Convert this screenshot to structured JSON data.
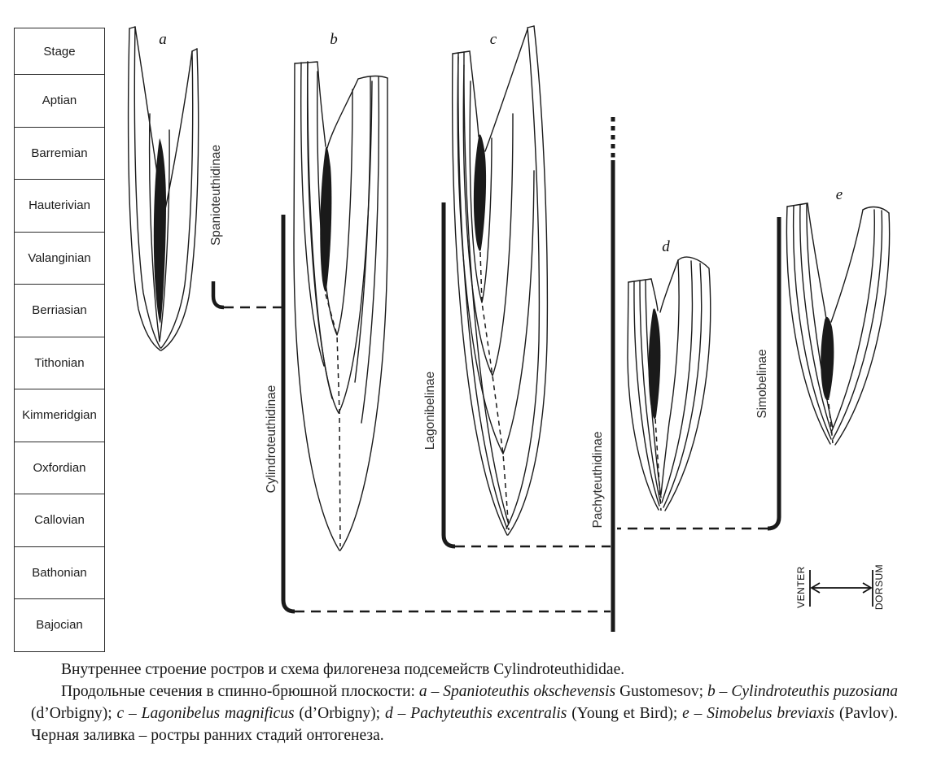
{
  "stage_column": {
    "header": "Stage",
    "stages": [
      "Aptian",
      "Barremian",
      "Hauterivian",
      "Valanginian",
      "Berriasian",
      "Tithonian",
      "Kimmeridgian",
      "Oxfordian",
      "Callovian",
      "Bathonian",
      "Bajocian"
    ]
  },
  "diagram": {
    "specimens": [
      {
        "letter": "a"
      },
      {
        "letter": "b"
      },
      {
        "letter": "c"
      },
      {
        "letter": "d"
      },
      {
        "letter": "e"
      }
    ],
    "subfamily_labels": {
      "spanioteuthidinae": "Spanioteuthidinae",
      "cylindroteuthidinae": "Cylindroteuthidinae",
      "lagonibelinae": "Lagonibelinae",
      "pachyteuthidinae": "Pachyteuthidinae",
      "simobelinae": "Simobelinae"
    },
    "orientation_axis": {
      "left_label": "VENTER",
      "right_label": "DORSUM"
    }
  },
  "colors": {
    "ink": "#1a1a1a",
    "early_ontogeny_fill": "#111111",
    "background": "#ffffff"
  },
  "caption": {
    "line1": "Внутреннее строение ростров и схема филогенеза подсемейств Cylindroteuthididae.",
    "line2_runs": [
      {
        "text": "Продольные сечения в спинно-брюшной плоскости: ",
        "italic": false
      },
      {
        "text": "a",
        "italic": true
      },
      {
        "text": " – ",
        "italic": false
      },
      {
        "text": "Spanioteuthis okschevensis",
        "italic": true
      },
      {
        "text": " Gustomesov; ",
        "italic": false
      },
      {
        "text": "b",
        "italic": true
      },
      {
        "text": " – ",
        "italic": false
      },
      {
        "text": "Cylindroteuthis puzosiana",
        "italic": true
      },
      {
        "text": " (d’Orbigny); ",
        "italic": false
      },
      {
        "text": "c",
        "italic": true
      },
      {
        "text": " – ",
        "italic": false
      },
      {
        "text": "Lagonibelus magnificus",
        "italic": true
      },
      {
        "text": " (d’Orbigny); ",
        "italic": false
      },
      {
        "text": "d",
        "italic": true
      },
      {
        "text": " – ",
        "italic": false
      },
      {
        "text": "Pachyteuthis excentralis",
        "italic": true
      },
      {
        "text": " (Young et Bird); ",
        "italic": false
      },
      {
        "text": "e",
        "italic": true
      },
      {
        "text": " – ",
        "italic": false
      },
      {
        "text": "Simobelus breviaxis",
        "italic": true
      },
      {
        "text": " (Pavlov). Черная заливка – ростры ранних стадий онтогенеза.",
        "italic": false
      }
    ]
  }
}
